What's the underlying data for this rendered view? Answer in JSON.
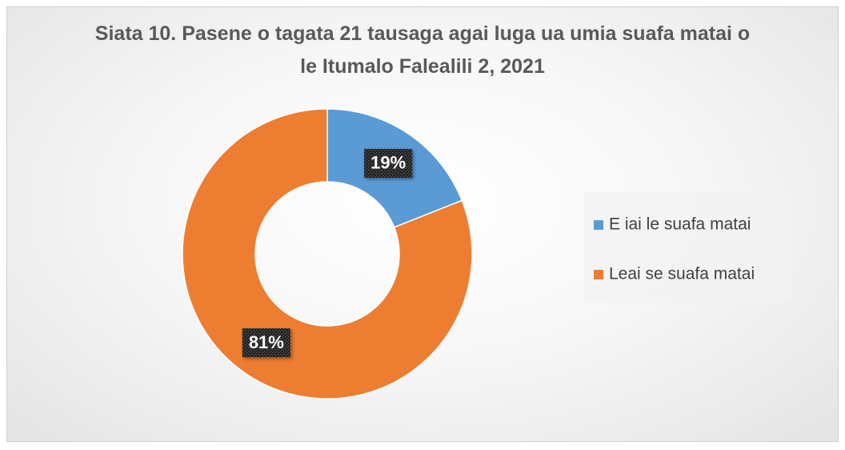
{
  "chart_data": {
    "type": "donut",
    "title": "Siata 10. Pasene o tagata 21 tausaga agai luga ua umia suafa matai o le Itumalo Falealili 2, 2021",
    "categories": [
      "E iai le suafa matai",
      "Leai se suafa matai"
    ],
    "values": [
      19,
      81
    ],
    "value_labels": [
      "19%",
      "81%"
    ],
    "colors": [
      "#5b9bd5",
      "#ed7d31"
    ],
    "legend": "right"
  }
}
